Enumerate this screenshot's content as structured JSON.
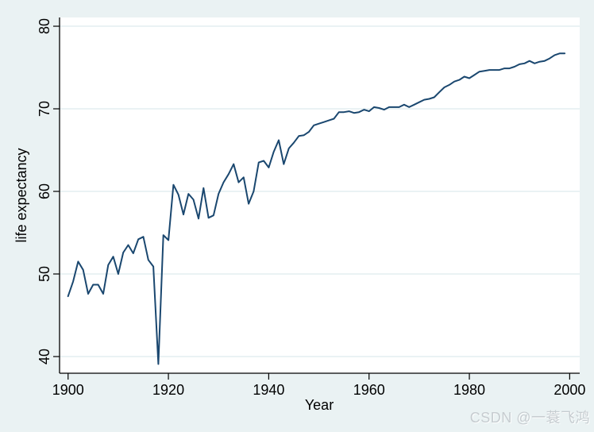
{
  "page": {
    "watermark": "CSDN @一蓑飞鸿",
    "background_color": "#eaf2f3"
  },
  "chart_data": {
    "type": "line",
    "title": "",
    "xlabel": "Year",
    "ylabel": "life expectancy",
    "legend": "none",
    "grid": true,
    "x_ticks": [
      1900,
      1920,
      1940,
      1960,
      1980,
      2000
    ],
    "y_ticks": [
      40,
      50,
      60,
      70,
      80
    ],
    "xlim": [
      1898.3,
      2002.0
    ],
    "ylim": [
      37.98,
      81.06
    ],
    "colors": {
      "line": "#1a476f",
      "background": "#eaf2f3",
      "plot_background": "#ffffff",
      "grid": "#e7f0f2",
      "axis": "#000000"
    },
    "series": [
      {
        "name": "life expectancy",
        "x": [
          1900,
          1901,
          1902,
          1903,
          1904,
          1905,
          1906,
          1907,
          1908,
          1909,
          1910,
          1911,
          1912,
          1913,
          1914,
          1915,
          1916,
          1917,
          1918,
          1919,
          1920,
          1921,
          1922,
          1923,
          1924,
          1925,
          1926,
          1927,
          1928,
          1929,
          1930,
          1931,
          1932,
          1933,
          1934,
          1935,
          1936,
          1937,
          1938,
          1939,
          1940,
          1941,
          1942,
          1943,
          1944,
          1945,
          1946,
          1947,
          1948,
          1949,
          1950,
          1951,
          1952,
          1953,
          1954,
          1955,
          1956,
          1957,
          1958,
          1959,
          1960,
          1961,
          1962,
          1963,
          1964,
          1965,
          1966,
          1967,
          1968,
          1969,
          1970,
          1971,
          1972,
          1973,
          1974,
          1975,
          1976,
          1977,
          1978,
          1979,
          1980,
          1981,
          1982,
          1983,
          1984,
          1985,
          1986,
          1987,
          1988,
          1989,
          1990,
          1991,
          1992,
          1993,
          1994,
          1995,
          1996,
          1997,
          1998,
          1999
        ],
        "values": [
          47.3,
          49.1,
          51.5,
          50.5,
          47.6,
          48.7,
          48.7,
          47.6,
          51.1,
          52.1,
          50.0,
          52.6,
          53.5,
          52.5,
          54.2,
          54.5,
          51.7,
          50.9,
          39.1,
          54.7,
          54.1,
          60.8,
          59.6,
          57.2,
          59.7,
          59.0,
          56.7,
          60.4,
          56.8,
          57.1,
          59.7,
          61.1,
          62.1,
          63.3,
          61.1,
          61.7,
          58.5,
          60.0,
          63.5,
          63.7,
          62.9,
          64.8,
          66.2,
          63.3,
          65.2,
          65.9,
          66.7,
          66.8,
          67.2,
          68.0,
          68.2,
          68.4,
          68.6,
          68.8,
          69.6,
          69.6,
          69.7,
          69.5,
          69.6,
          69.9,
          69.7,
          70.2,
          70.1,
          69.9,
          70.2,
          70.2,
          70.2,
          70.5,
          70.2,
          70.5,
          70.8,
          71.1,
          71.2,
          71.4,
          72.0,
          72.6,
          72.9,
          73.3,
          73.5,
          73.9,
          73.7,
          74.1,
          74.5,
          74.6,
          74.7,
          74.7,
          74.7,
          74.9,
          74.9,
          75.1,
          75.4,
          75.5,
          75.8,
          75.5,
          75.7,
          75.8,
          76.1,
          76.5,
          76.7,
          76.7
        ]
      }
    ]
  }
}
